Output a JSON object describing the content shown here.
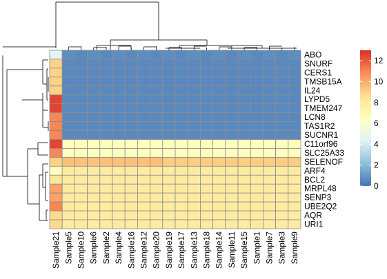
{
  "chart_data": {
    "type": "heatmap",
    "rows": [
      "ABO",
      "SNURF",
      "CERS1",
      "TMSB15A",
      "IL24",
      "LYPD5",
      "TMEM247",
      "LCN8",
      "TAS1R2",
      "SUCNR1",
      "C11orf96",
      "SLC25A33",
      "SELENOF",
      "ARF4",
      "BCL2",
      "MRPL48",
      "SENP3",
      "UBE2Q2",
      "AQR",
      "URI1"
    ],
    "columns": [
      "Sample21",
      "Sample5",
      "Sample10",
      "Sample6",
      "Sample2",
      "Sample4",
      "Sample16",
      "Sample12",
      "Sample20",
      "Sample19",
      "Sample17",
      "Sample13",
      "Sample18",
      "Sample14",
      "Sample11",
      "Sample15",
      "Sample1",
      "Sample7",
      "Sample3",
      "Sample9"
    ],
    "values": [
      [
        4.5,
        0.7,
        0.6,
        0.7,
        0.6,
        0.7,
        0.6,
        0.7,
        0.6,
        0.7,
        0.6,
        0.7,
        0.6,
        0.7,
        0.6,
        0.7,
        0.6,
        0.7,
        0.6,
        0.7
      ],
      [
        9.0,
        0.6,
        0.6,
        0.6,
        0.6,
        0.6,
        0.6,
        0.6,
        0.6,
        0.6,
        0.6,
        0.6,
        0.6,
        0.6,
        0.6,
        0.6,
        0.6,
        0.6,
        0.6,
        0.6
      ],
      [
        9.0,
        0.6,
        0.6,
        0.6,
        0.6,
        0.6,
        0.6,
        0.6,
        0.6,
        0.6,
        0.6,
        0.6,
        0.6,
        0.6,
        0.6,
        0.6,
        0.6,
        0.6,
        0.6,
        0.6
      ],
      [
        9.0,
        0.6,
        0.6,
        0.6,
        0.6,
        0.6,
        0.6,
        0.6,
        0.6,
        0.6,
        0.6,
        0.6,
        0.6,
        0.6,
        0.6,
        0.6,
        0.6,
        0.6,
        0.6,
        0.6
      ],
      [
        9.0,
        0.6,
        0.6,
        0.6,
        0.6,
        0.6,
        0.6,
        0.6,
        0.6,
        0.6,
        0.6,
        0.6,
        0.6,
        0.6,
        0.6,
        0.6,
        0.6,
        0.6,
        0.6,
        0.6
      ],
      [
        12.5,
        0.6,
        0.6,
        0.6,
        0.6,
        0.6,
        0.6,
        0.6,
        0.6,
        0.6,
        0.6,
        0.6,
        0.6,
        0.6,
        0.6,
        0.6,
        0.6,
        0.6,
        0.6,
        0.6
      ],
      [
        12.5,
        0.6,
        0.6,
        0.6,
        0.6,
        0.6,
        0.6,
        0.6,
        0.6,
        0.6,
        0.6,
        0.6,
        0.6,
        0.6,
        0.6,
        0.6,
        0.6,
        0.6,
        0.6,
        0.6
      ],
      [
        11.0,
        0.6,
        0.6,
        0.6,
        0.6,
        0.6,
        0.6,
        0.6,
        0.6,
        0.6,
        0.6,
        0.6,
        0.6,
        0.6,
        0.6,
        0.6,
        0.6,
        0.6,
        0.6,
        0.6
      ],
      [
        11.0,
        0.6,
        0.6,
        0.6,
        0.6,
        0.6,
        0.6,
        0.6,
        0.6,
        0.6,
        0.6,
        0.6,
        0.6,
        0.6,
        0.6,
        0.6,
        0.6,
        0.6,
        0.6,
        0.6
      ],
      [
        11.0,
        0.6,
        0.6,
        0.6,
        0.6,
        0.6,
        0.6,
        0.6,
        0.6,
        0.6,
        0.6,
        0.6,
        0.6,
        0.6,
        0.6,
        0.6,
        0.6,
        0.6,
        0.6,
        0.6
      ],
      [
        12.5,
        6.6,
        6.6,
        6.6,
        6.6,
        6.6,
        6.6,
        6.6,
        6.6,
        6.6,
        6.6,
        6.6,
        6.6,
        6.6,
        6.6,
        6.6,
        6.6,
        6.6,
        6.6,
        6.6
      ],
      [
        11.0,
        6.6,
        6.6,
        6.6,
        6.6,
        6.6,
        6.6,
        6.6,
        6.6,
        6.6,
        6.6,
        6.6,
        6.6,
        6.6,
        6.6,
        6.6,
        6.6,
        6.6,
        6.6,
        6.6
      ],
      [
        9.0,
        9.5,
        9.5,
        9.5,
        9.5,
        9.5,
        9.5,
        9.5,
        9.5,
        9.2,
        9.2,
        9.2,
        9.2,
        9.2,
        9.2,
        9.2,
        9.2,
        9.2,
        9.2,
        9.2
      ],
      [
        6.6,
        7.9,
        7.9,
        7.9,
        7.9,
        7.9,
        7.9,
        7.9,
        7.9,
        7.9,
        7.9,
        7.9,
        7.9,
        7.9,
        7.9,
        7.9,
        7.9,
        7.9,
        7.9,
        7.9
      ],
      [
        8.2,
        7.9,
        7.9,
        7.9,
        7.9,
        7.9,
        7.9,
        7.9,
        7.9,
        7.9,
        7.9,
        7.9,
        7.9,
        7.9,
        7.9,
        7.9,
        7.9,
        7.9,
        7.9,
        7.9
      ],
      [
        10.3,
        7.9,
        7.9,
        7.9,
        7.9,
        7.9,
        7.9,
        7.9,
        7.9,
        7.9,
        7.9,
        7.9,
        7.9,
        7.9,
        7.9,
        7.9,
        7.9,
        7.9,
        7.9,
        7.9
      ],
      [
        10.3,
        7.9,
        7.9,
        7.9,
        7.9,
        7.9,
        7.9,
        7.9,
        7.9,
        7.9,
        7.9,
        7.9,
        7.9,
        7.9,
        7.9,
        7.9,
        7.9,
        7.9,
        7.9,
        7.9
      ],
      [
        11.0,
        7.9,
        7.9,
        7.9,
        7.9,
        7.9,
        7.9,
        7.9,
        7.9,
        7.9,
        7.9,
        7.9,
        7.9,
        7.9,
        7.9,
        7.9,
        7.9,
        7.9,
        7.9,
        7.9
      ],
      [
        8.8,
        7.9,
        7.9,
        7.9,
        7.9,
        7.9,
        7.9,
        7.9,
        7.9,
        7.9,
        7.9,
        7.9,
        7.9,
        7.9,
        7.9,
        7.9,
        7.9,
        7.9,
        7.9,
        7.9
      ],
      [
        8.8,
        7.9,
        7.9,
        7.9,
        7.9,
        7.9,
        7.9,
        7.9,
        7.9,
        7.9,
        7.9,
        7.9,
        7.9,
        7.9,
        7.9,
        7.9,
        7.9,
        7.9,
        7.9,
        7.9
      ]
    ],
    "color_scale": {
      "min": 0,
      "max": 13,
      "ticks": [
        0,
        2,
        4,
        6,
        8,
        10,
        12
      ],
      "colors": [
        "#4575b4",
        "#91bfdb",
        "#e0f3f8",
        "#ffffbf",
        "#fee090",
        "#fc8d59",
        "#d73027"
      ]
    },
    "cell_border_color": "#8c8c8c",
    "row_dendrogram": true,
    "column_dendrogram": true,
    "title": "",
    "xlabel": "",
    "ylabel": ""
  }
}
